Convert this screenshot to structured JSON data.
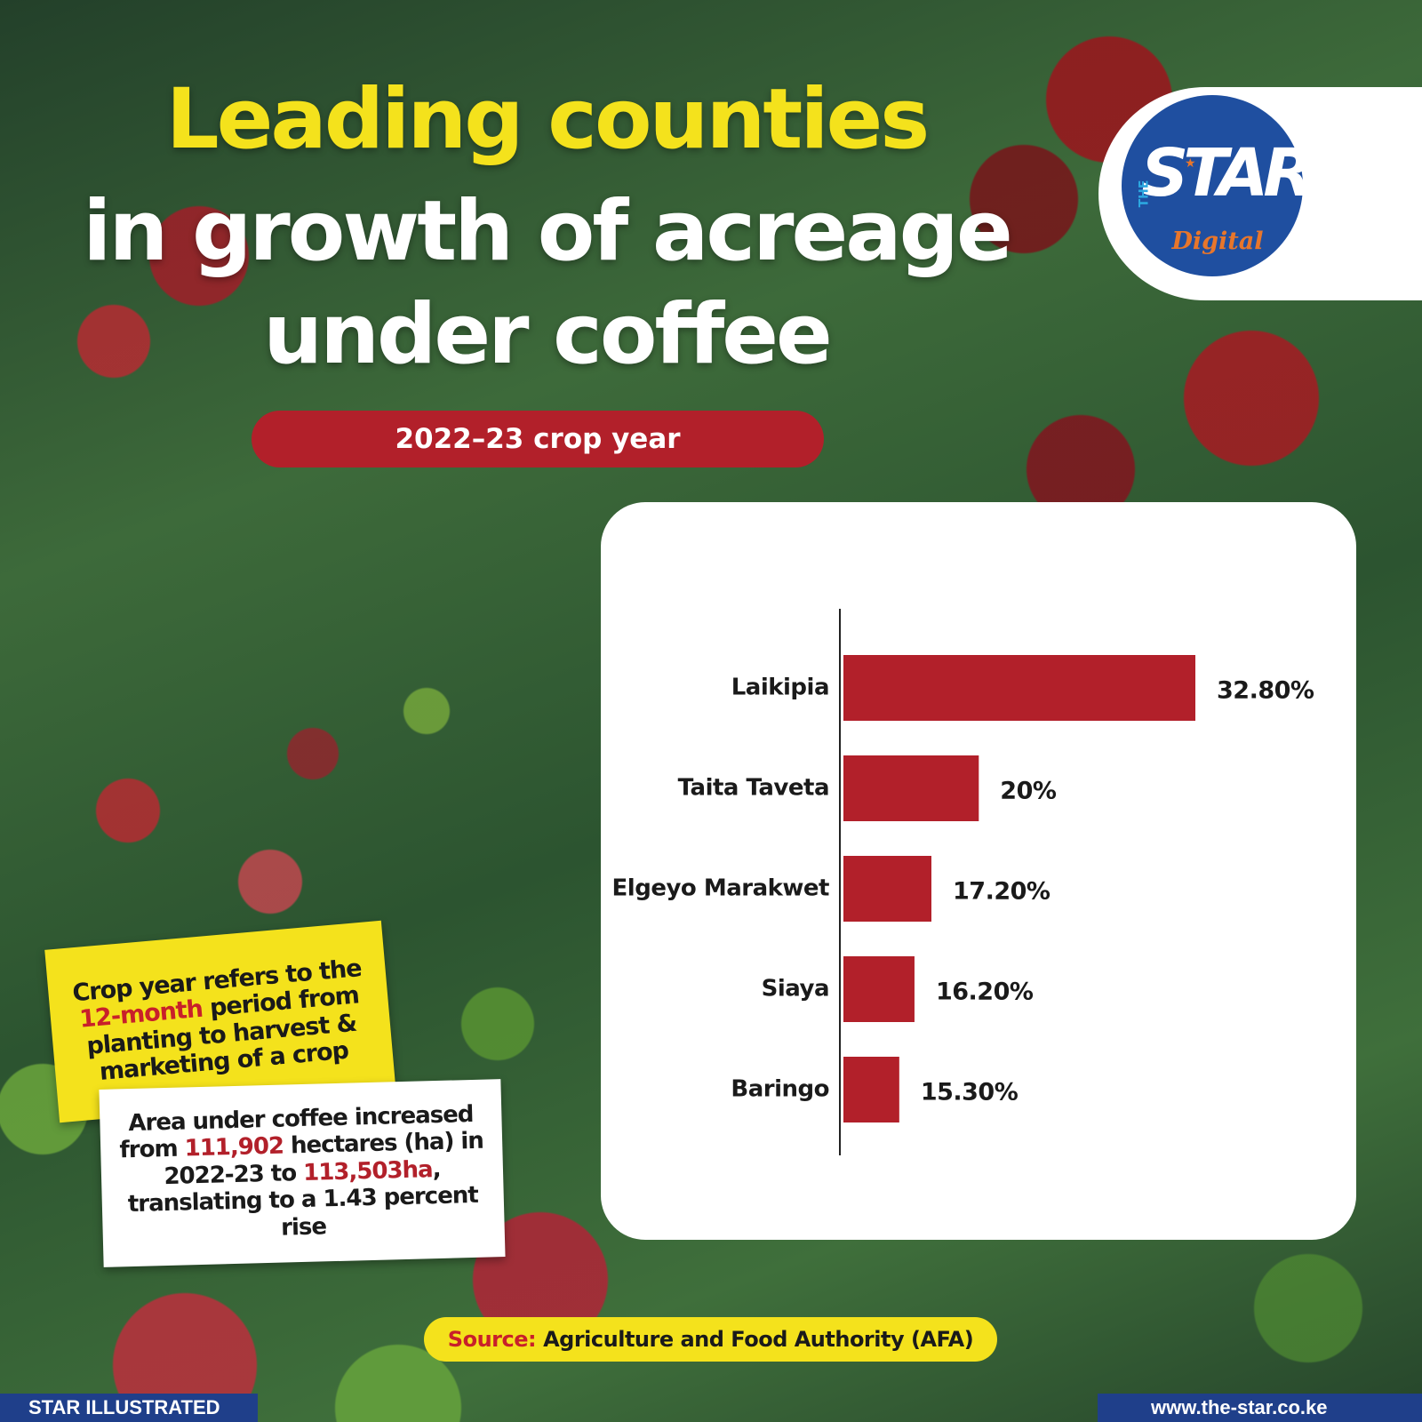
{
  "title": {
    "line1": "Leading counties",
    "line2": "in growth of acreage",
    "line3": "under coffee"
  },
  "subtitle": "2022–23 crop year",
  "logo": {
    "main": "STAR",
    "prefix": "THE",
    "sub": "Digital"
  },
  "chart_data": {
    "type": "bar",
    "orientation": "horizontal",
    "categories": [
      "Laikipia",
      "Taita Taveta",
      "Elgeyo Marakwet",
      "Siaya",
      "Baringo"
    ],
    "values": [
      32.8,
      20,
      17.2,
      16.2,
      15.3
    ],
    "data_labels": [
      "32.80%",
      "20%",
      "17.20%",
      "16.20%",
      "15.30%"
    ],
    "bar_color": "#b2202a",
    "xlim": [
      12,
      32.8
    ],
    "grid": false
  },
  "note_crop_year": {
    "line1": "Crop year refers to the",
    "highlight": "12-month",
    "line2_rest": " period from",
    "line3": "planting to harvest &",
    "line4": "marketing of a crop"
  },
  "note_area": {
    "line1": "Area under coffee increased",
    "from_prefix": "from ",
    "from_value": "111,902",
    "from_suffix": " hectares (ha) in",
    "to_prefix": "2022-23 to ",
    "to_value": "113,503ha",
    "to_suffix": ",",
    "line4": "translating to a 1.43 percent",
    "line5": "rise"
  },
  "source": {
    "label": "Source:",
    "text": "Agriculture and Food Authority (AFA)"
  },
  "footer": {
    "left": "STAR ILLUSTRATED",
    "right": "www.the-star.co.ke"
  },
  "colors": {
    "accent_red": "#b2202a",
    "accent_yellow": "#f4e21c",
    "brand_blue": "#1f4fa0"
  }
}
